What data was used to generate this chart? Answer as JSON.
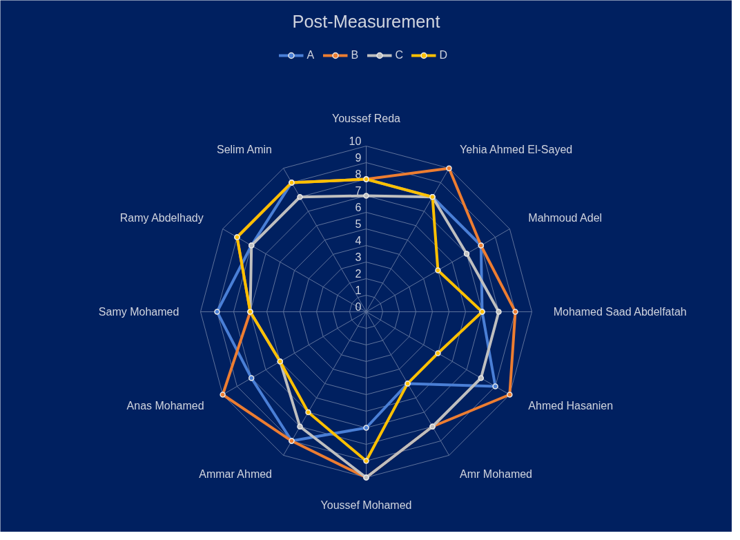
{
  "chart_data": {
    "type": "radar",
    "title": "Post-Measurement",
    "categories": [
      "Youssef Reda",
      "Yehia Ahmed El-Sayed",
      "Mahmoud Adel",
      "Mohamed Saad Abdelfatah",
      "Ahmed Hasanien",
      "Amr Mohamed",
      "Youssef Mohamed",
      "Ammar Ahmed",
      "Anas Mohamed",
      "Samy Mohamed",
      "Ramy Abdelhady",
      "Selim Amin"
    ],
    "series": [
      {
        "name": "A",
        "color": "#4a7fd6",
        "values": [
          8,
          8,
          8,
          7,
          9,
          5,
          7,
          9,
          8,
          9,
          8,
          9
        ]
      },
      {
        "name": "B",
        "color": "#ed7d31",
        "values": [
          8,
          10,
          8,
          9,
          10,
          8,
          10,
          9,
          10,
          7,
          9,
          9
        ]
      },
      {
        "name": "C",
        "color": "#bfbfbf",
        "values": [
          7,
          8,
          7,
          8,
          8,
          8,
          10,
          8,
          6,
          7,
          8,
          8
        ]
      },
      {
        "name": "D",
        "color": "#ffc000",
        "values": [
          8,
          8,
          5,
          7,
          5,
          5,
          9,
          7,
          6,
          7,
          9,
          9
        ]
      }
    ],
    "ylim": [
      0,
      10
    ],
    "yticks": [
      0,
      1,
      2,
      3,
      4,
      5,
      6,
      7,
      8,
      9,
      10
    ],
    "grid": true,
    "legend": "top",
    "marker": "circle",
    "line_style": "solid"
  }
}
